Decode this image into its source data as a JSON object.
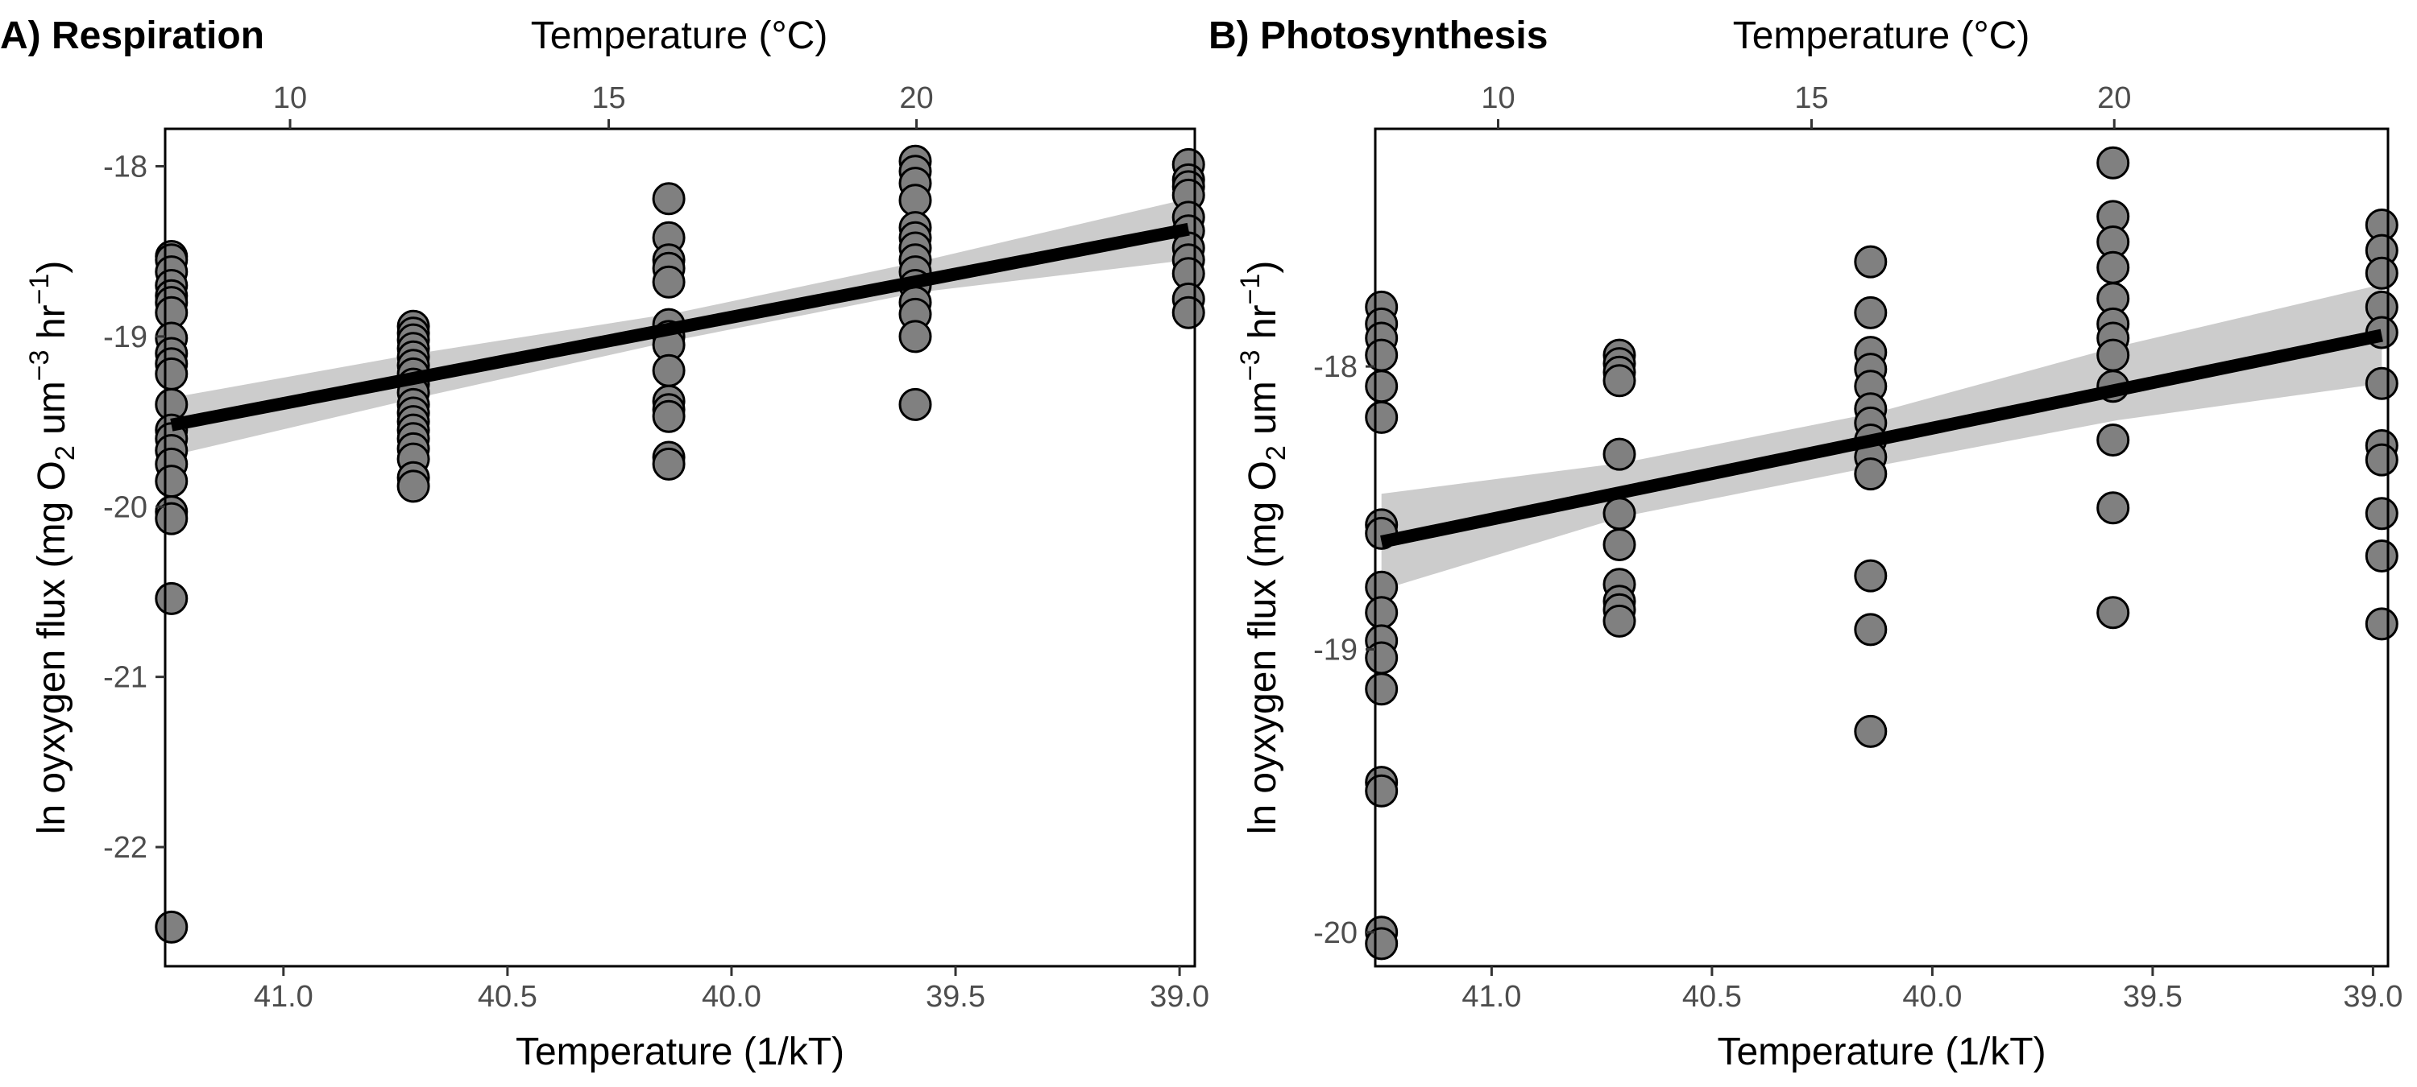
{
  "chart_data": [
    {
      "type": "scatter",
      "panel_title": "A) Respiration",
      "xlabel": "Temperature (1/kT)",
      "ylabel": {
        "main": "ln oyxygen flux (mg O",
        "sub": "2",
        "mid": " um",
        "sup1": "−3",
        "mid2": " hr",
        "sup2": "−1",
        "end": ")"
      },
      "top_xlabel": "Temperature (°C)",
      "xlim": [
        41.264,
        38.966
      ],
      "ylim": [
        -22.7,
        -17.78
      ],
      "x_reversed": true,
      "grid": false,
      "legend": "none",
      "x_ticks": [
        {
          "value": 41.0,
          "label": "41.0"
        },
        {
          "value": 40.5,
          "label": "40.5"
        },
        {
          "value": 40.0,
          "label": "40.0"
        },
        {
          "value": 39.5,
          "label": "39.5"
        },
        {
          "value": 39.0,
          "label": "39.0"
        }
      ],
      "top_ticks": [
        {
          "value": 10,
          "label": "10"
        },
        {
          "value": 15,
          "label": "15"
        },
        {
          "value": 20,
          "label": "20"
        }
      ],
      "y_ticks": [
        {
          "value": -18,
          "label": "-18"
        },
        {
          "value": -19,
          "label": "-19"
        },
        {
          "value": -20,
          "label": "-20"
        },
        {
          "value": -21,
          "label": "-21"
        },
        {
          "value": -22,
          "label": "-22"
        }
      ],
      "points": [
        {
          "x": 41.25,
          "ys": [
            -18.53,
            -18.55,
            -18.62,
            -18.7,
            -18.76,
            -18.8,
            -18.86,
            -19.01,
            -19.1,
            -19.16,
            -19.22,
            -19.4,
            -19.55,
            -19.6,
            -19.67,
            -19.75,
            -19.85,
            -20.03,
            -20.07,
            -20.54,
            -22.47
          ]
        },
        {
          "x": 40.71,
          "ys": [
            -18.94,
            -18.98,
            -19.02,
            -19.07,
            -19.12,
            -19.17,
            -19.22,
            -19.28,
            -19.33,
            -19.4,
            -19.45,
            -19.5,
            -19.55,
            -19.6,
            -19.66,
            -19.72,
            -19.83,
            -19.88
          ]
        },
        {
          "x": 40.14,
          "ys": [
            -18.19,
            -18.42,
            -18.55,
            -18.6,
            -18.68,
            -18.93,
            -19.0,
            -19.05,
            -19.2,
            -19.38,
            -19.43,
            -19.47,
            -19.71,
            -19.75
          ]
        },
        {
          "x": 39.59,
          "ys": [
            -17.97,
            -18.03,
            -18.1,
            -18.2,
            -18.36,
            -18.42,
            -18.48,
            -18.55,
            -18.62,
            -18.7,
            -18.8,
            -18.87,
            -19.0,
            -19.4
          ]
        },
        {
          "x": 38.98,
          "ys": [
            -17.99,
            -18.08,
            -18.12,
            -18.17,
            -18.3,
            -18.38,
            -18.48,
            -18.55,
            -18.63,
            -18.78,
            -18.86
          ]
        }
      ],
      "fit": {
        "x": [
          41.25,
          38.98
        ],
        "y": [
          -19.52,
          -18.37
        ]
      },
      "band": {
        "x": [
          41.25,
          40.7,
          40.12,
          39.58,
          38.98
        ],
        "lower": [
          -19.7,
          -19.36,
          -19.02,
          -18.74,
          -18.55
        ],
        "upper": [
          -19.36,
          -19.1,
          -18.86,
          -18.56,
          -18.19
        ]
      }
    },
    {
      "type": "scatter",
      "panel_title": "B) Photosynthesis",
      "xlabel": "Temperature (1/kT)",
      "ylabel": {
        "main": "ln oyxygen flux (mg O",
        "sub": "2",
        "mid": " um",
        "sup1": "−3",
        "mid2": " hr",
        "sup2": "−1",
        "end": ")"
      },
      "top_xlabel": "Temperature (°C)",
      "xlim": [
        41.264,
        38.966
      ],
      "ylim": [
        -20.12,
        -17.16
      ],
      "x_reversed": true,
      "grid": false,
      "legend": "none",
      "x_ticks": [
        {
          "value": 41.0,
          "label": "41.0"
        },
        {
          "value": 40.5,
          "label": "40.5"
        },
        {
          "value": 40.0,
          "label": "40.0"
        },
        {
          "value": 39.5,
          "label": "39.5"
        },
        {
          "value": 39.0,
          "label": "39.0"
        }
      ],
      "top_ticks": [
        {
          "value": 10,
          "label": "10"
        },
        {
          "value": 15,
          "label": "15"
        },
        {
          "value": 20,
          "label": "20"
        }
      ],
      "y_ticks": [
        {
          "value": -18,
          "label": "-18"
        },
        {
          "value": -19,
          "label": "-19"
        },
        {
          "value": -20,
          "label": "-20"
        }
      ],
      "points": [
        {
          "x": 41.25,
          "ys": [
            -17.79,
            -17.85,
            -17.9,
            -17.96,
            -18.07,
            -18.18,
            -18.56,
            -18.59,
            -18.78,
            -18.87,
            -18.97,
            -19.03,
            -19.14,
            -19.47,
            -19.5,
            -20.0,
            -20.04
          ]
        },
        {
          "x": 40.71,
          "ys": [
            -17.96,
            -17.99,
            -18.02,
            -18.05,
            -18.31,
            -18.52,
            -18.63,
            -18.77,
            -18.83,
            -18.86,
            -18.9
          ]
        },
        {
          "x": 40.14,
          "ys": [
            -17.63,
            -17.81,
            -17.95,
            -18.01,
            -18.07,
            -18.15,
            -18.2,
            -18.26,
            -18.32,
            -18.38,
            -18.74,
            -18.93,
            -19.29
          ]
        },
        {
          "x": 39.59,
          "ys": [
            -17.28,
            -17.47,
            -17.56,
            -17.65,
            -17.76,
            -17.85,
            -17.9,
            -17.96,
            -18.07,
            -18.26,
            -18.5,
            -18.87
          ]
        },
        {
          "x": 38.98,
          "ys": [
            -17.5,
            -17.59,
            -17.67,
            -17.79,
            -17.88,
            -18.06,
            -18.28,
            -18.33,
            -18.52,
            -18.67,
            -18.91
          ]
        }
      ],
      "fit": {
        "x": [
          41.25,
          38.98
        ],
        "y": [
          -18.62,
          -17.89
        ]
      },
      "band": {
        "x": [
          41.25,
          40.7,
          40.12,
          39.58,
          38.98
        ],
        "lower": [
          -18.79,
          -18.53,
          -18.35,
          -18.19,
          -18.06
        ],
        "upper": [
          -18.45,
          -18.34,
          -18.16,
          -17.93,
          -17.71
        ]
      }
    }
  ],
  "colors": {
    "point_fill": "#808080",
    "point_stroke": "#000000",
    "fit_line": "#000000",
    "band": "#cccccc",
    "tick_text": "#4d4d4d"
  }
}
